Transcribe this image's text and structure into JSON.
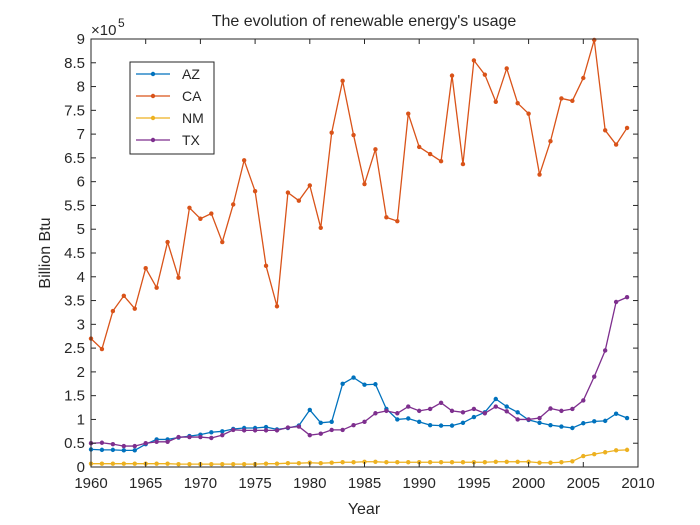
{
  "chart_data": {
    "type": "line",
    "title": "The evolution of renewable energy's usage",
    "xlabel": "Year",
    "ylabel": "Billion Btu",
    "y_exponent_label": "×10",
    "y_exponent_power": "5",
    "xlim": [
      1960,
      2010
    ],
    "ylim": [
      0,
      9
    ],
    "x_ticks": [
      1960,
      1965,
      1970,
      1975,
      1980,
      1985,
      1990,
      1995,
      2000,
      2005,
      2010
    ],
    "y_ticks": [
      0,
      0.5,
      1,
      1.5,
      2,
      2.5,
      3,
      3.5,
      4,
      4.5,
      5,
      5.5,
      6,
      6.5,
      7,
      7.5,
      8,
      8.5,
      9
    ],
    "y_tick_labels": [
      "0",
      "0.5",
      "1",
      "1.5",
      "2",
      "2.5",
      "3",
      "3.5",
      "4",
      "4.5",
      "5",
      "5.5",
      "6",
      "6.5",
      "7",
      "7.5",
      "8",
      "8.5",
      "9"
    ],
    "grid": false,
    "legend_position": "top-left",
    "x": [
      1960,
      1961,
      1962,
      1963,
      1964,
      1965,
      1966,
      1967,
      1968,
      1969,
      1970,
      1971,
      1972,
      1973,
      1974,
      1975,
      1976,
      1977,
      1978,
      1979,
      1980,
      1981,
      1982,
      1983,
      1984,
      1985,
      1986,
      1987,
      1988,
      1989,
      1990,
      1991,
      1992,
      1993,
      1994,
      1995,
      1996,
      1997,
      1998,
      1999,
      2000,
      2001,
      2002,
      2003,
      2004,
      2005,
      2006,
      2007,
      2008,
      2009
    ],
    "series": [
      {
        "name": "AZ",
        "color": "#0072BD",
        "values": [
          0.37,
          0.36,
          0.36,
          0.35,
          0.35,
          0.48,
          0.58,
          0.58,
          0.62,
          0.65,
          0.68,
          0.73,
          0.75,
          0.8,
          0.82,
          0.82,
          0.84,
          0.79,
          0.82,
          0.87,
          1.2,
          0.93,
          0.95,
          1.75,
          1.88,
          1.73,
          1.74,
          1.22,
          1.0,
          1.02,
          0.95,
          0.88,
          0.87,
          0.87,
          0.93,
          1.05,
          1.15,
          1.43,
          1.27,
          1.15,
          0.99,
          0.93,
          0.88,
          0.85,
          0.82,
          0.92,
          0.96,
          0.97,
          1.12,
          1.03
        ]
      },
      {
        "name": "CA",
        "color": "#D95319",
        "values": [
          2.7,
          2.48,
          3.28,
          3.6,
          3.33,
          4.18,
          3.77,
          4.73,
          3.98,
          5.45,
          5.22,
          5.33,
          4.73,
          5.52,
          6.45,
          5.8,
          4.23,
          3.38,
          5.77,
          5.6,
          5.92,
          5.03,
          7.03,
          8.12,
          6.98,
          5.95,
          6.68,
          5.25,
          5.17,
          7.43,
          6.73,
          6.58,
          6.43,
          8.23,
          6.37,
          8.55,
          8.25,
          7.68,
          8.38,
          7.65,
          7.43,
          6.15,
          6.85,
          7.75,
          7.7,
          8.18,
          8.98,
          7.08,
          6.78,
          7.13
        ]
      },
      {
        "name": "NM",
        "color": "#EDB120",
        "values": [
          0.07,
          0.07,
          0.07,
          0.07,
          0.07,
          0.07,
          0.07,
          0.07,
          0.06,
          0.06,
          0.06,
          0.06,
          0.06,
          0.06,
          0.06,
          0.06,
          0.07,
          0.07,
          0.08,
          0.08,
          0.09,
          0.08,
          0.09,
          0.1,
          0.1,
          0.11,
          0.11,
          0.1,
          0.1,
          0.1,
          0.1,
          0.1,
          0.1,
          0.1,
          0.1,
          0.1,
          0.1,
          0.11,
          0.11,
          0.11,
          0.11,
          0.09,
          0.09,
          0.1,
          0.12,
          0.23,
          0.27,
          0.31,
          0.35,
          0.36
        ]
      },
      {
        "name": "TX",
        "color": "#7E2F8E",
        "values": [
          0.5,
          0.51,
          0.48,
          0.44,
          0.44,
          0.5,
          0.53,
          0.53,
          0.63,
          0.63,
          0.63,
          0.61,
          0.67,
          0.78,
          0.77,
          0.77,
          0.77,
          0.77,
          0.83,
          0.85,
          0.67,
          0.7,
          0.78,
          0.78,
          0.88,
          0.95,
          1.13,
          1.18,
          1.13,
          1.27,
          1.18,
          1.22,
          1.35,
          1.18,
          1.15,
          1.22,
          1.13,
          1.27,
          1.17,
          1.0,
          1.0,
          1.03,
          1.23,
          1.18,
          1.22,
          1.4,
          1.9,
          2.45,
          3.47,
          3.57
        ]
      }
    ]
  }
}
